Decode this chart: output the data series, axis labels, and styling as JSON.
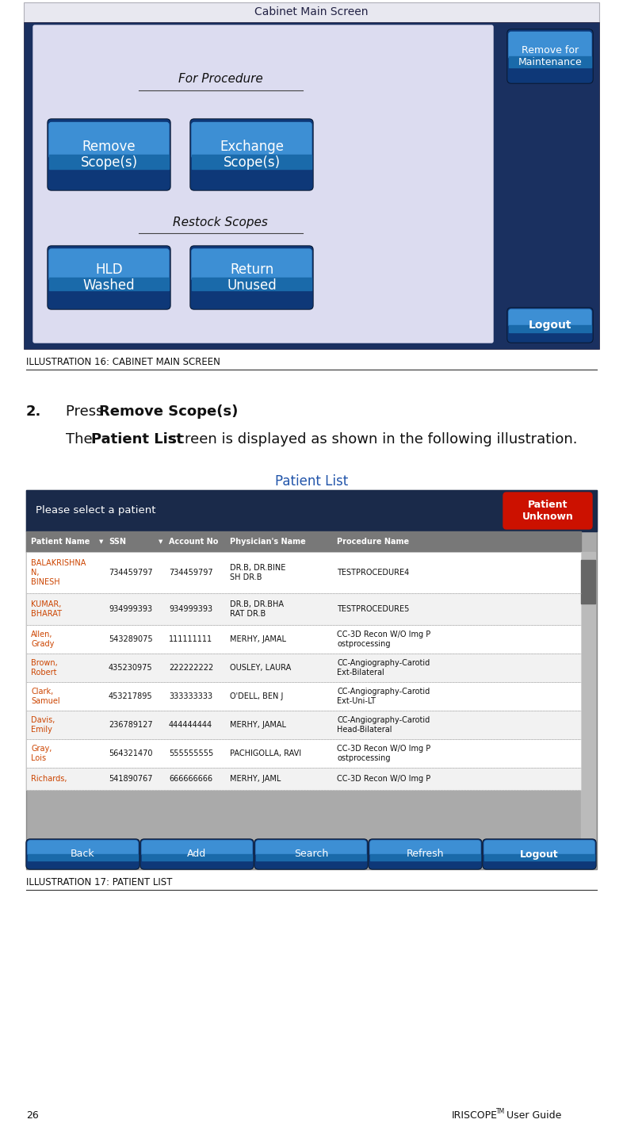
{
  "page_bg": "#ffffff",
  "fig_width": 7.86,
  "fig_height": 14.21,
  "illus16_caption": "ILLUSTRATION 16: CABINET MAIN SCREEN",
  "illus17_caption": "ILLUSTRATION 17: PATIENT LIST",
  "cabinet_bg_outer": "#1a3060",
  "cabinet_bg_inner": "#dcdcf0",
  "cabinet_title_text": "Cabinet Main Screen",
  "remove_maint_btn": "Remove for\nMaintenance",
  "logout_btn": "Logout",
  "for_procedure_label": "For Procedure",
  "restock_label": "Restock Scopes",
  "btn1_text": "Remove\nScope(s)",
  "btn2_text": "Exchange\nScope(s)",
  "btn3_text": "HLD\nWashed",
  "btn4_text": "Return\nUnused",
  "patient_list_title": "Patient List",
  "patient_list_title_color": "#2255aa",
  "pl_select_bg": "#1a2a4a",
  "pl_select_text": "Please select a patient",
  "pl_unknown_bg": "#cc1100",
  "pl_unknown_text": "Patient\nUnknown",
  "pl_col_headers": [
    "Patient Name",
    "SSN",
    "Account No",
    "Physician's Name",
    "Procedure Name"
  ],
  "pl_col_header_bg": "#777777",
  "pl_name_color": "#cc4400",
  "pl_text_color": "#111111",
  "pl_rows": [
    [
      "BALAKRISHNA\nN,\nBINESH",
      "734459797",
      "734459797",
      "DR.B, DR.BINE\nSH DR.B",
      "TESTPROCEDURE4"
    ],
    [
      "KUMAR,\nBHARAT",
      "934999393",
      "934999393",
      "DR.B, DR.BHA\nRAT DR.B",
      "TESTPROCEDURE5"
    ],
    [
      "Allen,\nGrady",
      "543289075",
      "111111111",
      "MERHY, JAMAL",
      "CC-3D Recon W/O Img P\nostprocessing"
    ],
    [
      "Brown,\nRobert",
      "435230975",
      "222222222",
      "OUSLEY, LAURA",
      "CC-Angiography-Carotid\nExt-Bilateral"
    ],
    [
      "Clark,\nSamuel",
      "453217895",
      "333333333",
      "O'DELL, BEN J",
      "CC-Angiography-Carotid\nExt-Uni-LT"
    ],
    [
      "Davis,\nEmily",
      "236789127",
      "444444444",
      "MERHY, JAMAL",
      "CC-Angiography-Carotid\nHead-Bilateral"
    ],
    [
      "Gray,\nLois",
      "564321470",
      "555555555",
      "PACHIGOLLA, RAVI",
      "CC-3D Recon W/O Img P\nostprocessing"
    ],
    [
      "Richards,",
      "541890767",
      "666666666",
      "MERHY, JAML",
      "CC-3D Recon W/O Img P"
    ]
  ],
  "pl_bottom_btns": [
    "Back",
    "Add",
    "Search",
    "Refresh",
    "Logout"
  ],
  "footer_page": "26",
  "footer_text": "IRISCOPE",
  "footer_tm": "TM",
  "footer_guide": " User Guide"
}
